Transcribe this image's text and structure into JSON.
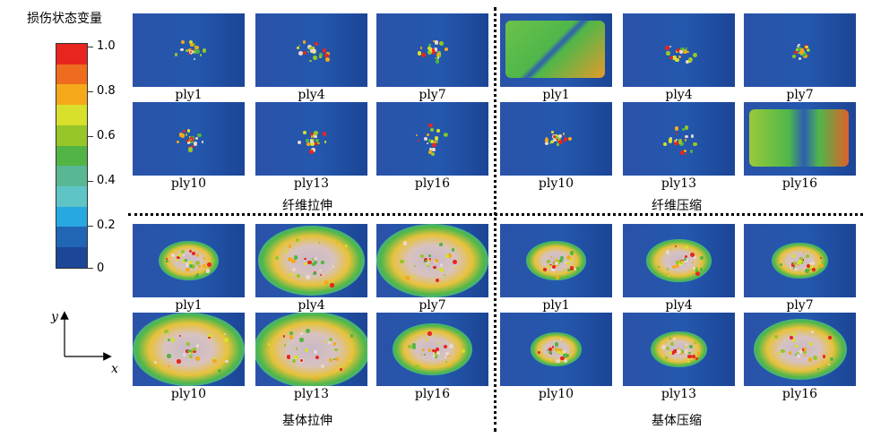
{
  "colorbar": {
    "title": "损伤状态变量",
    "tick_labels": [
      "1.0",
      "0.8",
      "0.6",
      "0.4",
      "0.2",
      "0"
    ],
    "colors": [
      "#e8251f",
      "#ef6c1e",
      "#f5a91a",
      "#d8e02c",
      "#96c628",
      "#52b444",
      "#58b894",
      "#5ec4c6",
      "#27a8e0",
      "#2165b5",
      "#1c4698"
    ]
  },
  "axes": {
    "x": "x",
    "y": "y"
  },
  "groups": [
    {
      "label": "纤维拉伸",
      "plies": [
        "ply1",
        "ply4",
        "ply7",
        "ply10",
        "ply13",
        "ply16"
      ]
    },
    {
      "label": "纤维压缩",
      "plies": [
        "ply1",
        "ply4",
        "ply7",
        "ply10",
        "ply13",
        "ply16"
      ]
    },
    {
      "label": "基体拉伸",
      "plies": [
        "ply1",
        "ply4",
        "ply7",
        "ply10",
        "ply13",
        "ply16"
      ]
    },
    {
      "label": "基体压缩",
      "plies": [
        "ply1",
        "ply4",
        "ply7",
        "ply10",
        "ply13",
        "ply16"
      ]
    }
  ]
}
